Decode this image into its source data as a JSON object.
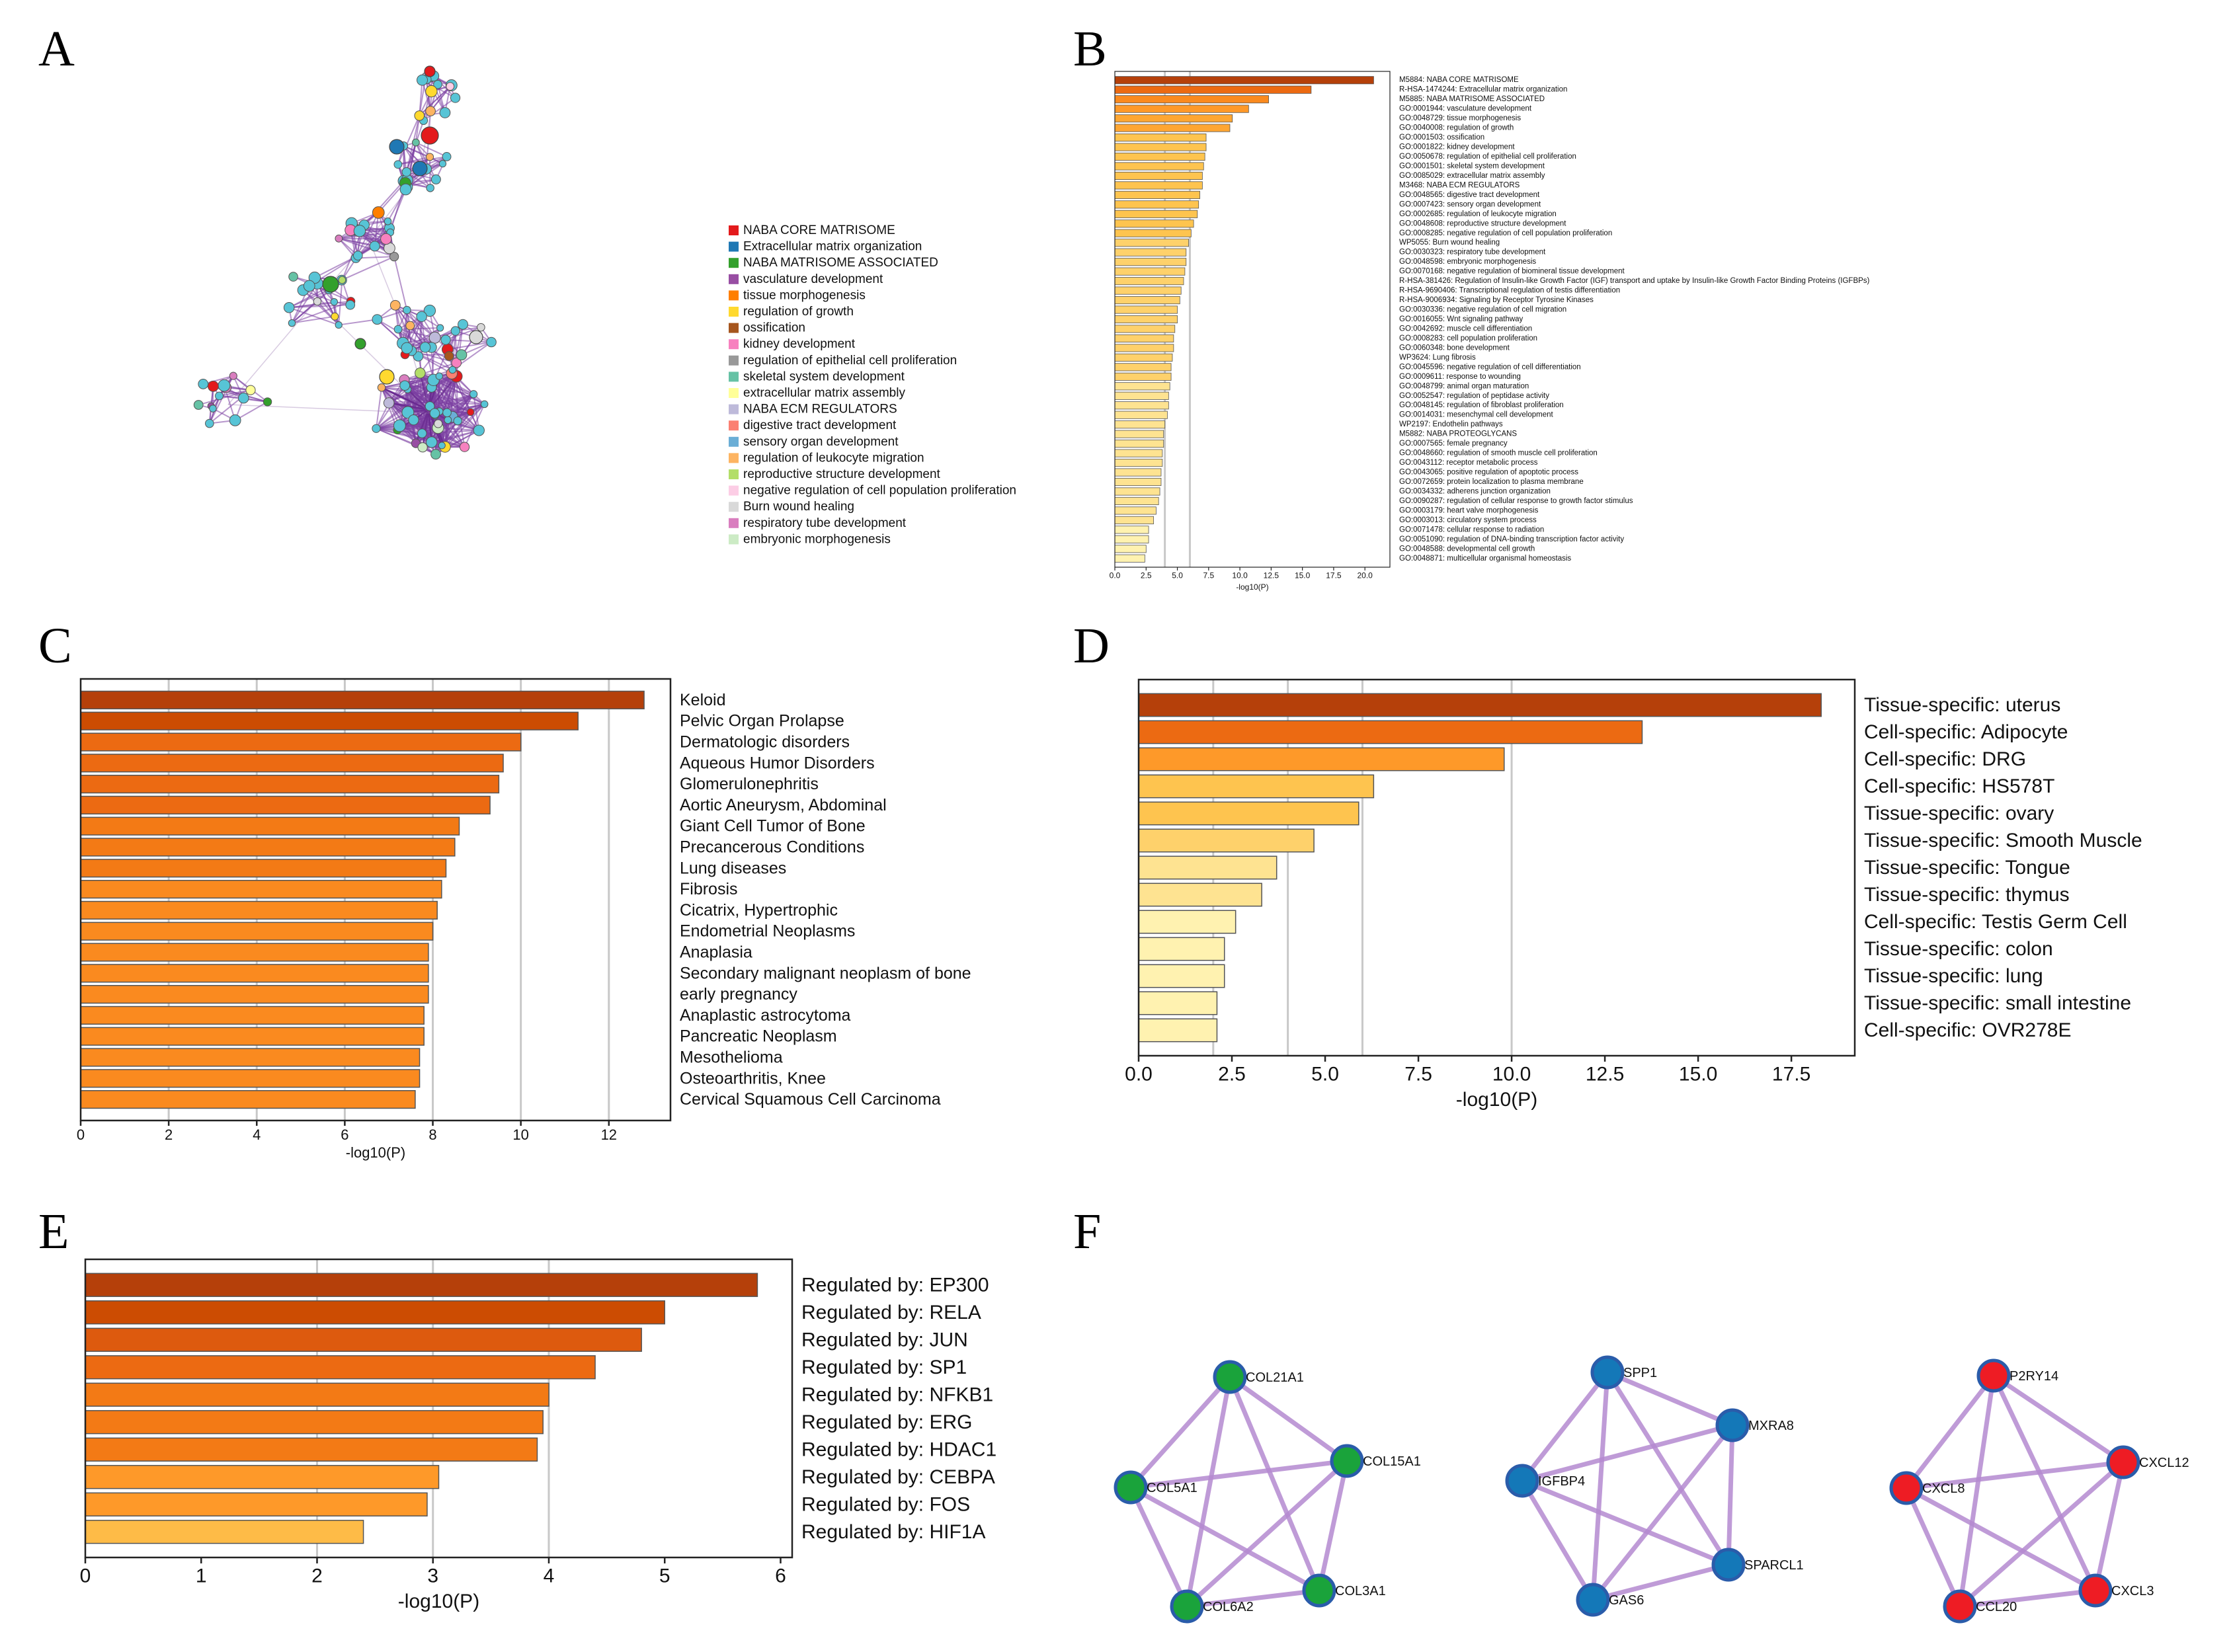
{
  "panel_labels": [
    "A",
    "B",
    "C",
    "D",
    "E",
    "F"
  ],
  "colors": {
    "grad": [
      "#ffffcc",
      "#fff2b0",
      "#fee391",
      "#fed16b",
      "#fec44f",
      "#febb47",
      "#fea632",
      "#fe9929",
      "#fa8a1f",
      "#f37a15",
      "#ec6a12",
      "#dd5a0e",
      "#cc4c02",
      "#b5400a"
    ],
    "edge": "#8e44ad",
    "node_green": "#1aa33b",
    "node_blue": "#1478b8",
    "node_red": "#ee1c24"
  },
  "chart_data": [
    {
      "panel": "A",
      "type": "network",
      "legend": [
        {
          "label": "NABA CORE MATRISOME",
          "color": "#e31a1c"
        },
        {
          "label": "Extracellular matrix organization",
          "color": "#1f78b4"
        },
        {
          "label": "NABA MATRISOME ASSOCIATED",
          "color": "#33a02c"
        },
        {
          "label": "vasculature development",
          "color": "#984ea3"
        },
        {
          "label": "tissue morphogenesis",
          "color": "#ff7f00"
        },
        {
          "label": "regulation of growth",
          "color": "#ffd92f"
        },
        {
          "label": "ossification",
          "color": "#a6561e"
        },
        {
          "label": "kidney development",
          "color": "#f781bf"
        },
        {
          "label": "regulation of epithelial cell proliferation",
          "color": "#999999"
        },
        {
          "label": "skeletal system development",
          "color": "#66c2a5"
        },
        {
          "label": "extracellular matrix assembly",
          "color": "#ffff99"
        },
        {
          "label": "NABA ECM REGULATORS",
          "color": "#bebada"
        },
        {
          "label": "digestive tract development",
          "color": "#fb8072"
        },
        {
          "label": "sensory organ development",
          "color": "#6baed6"
        },
        {
          "label": "regulation of leukocyte migration",
          "color": "#fdb462"
        },
        {
          "label": "reproductive structure development",
          "color": "#b3de69"
        },
        {
          "label": "negative regulation of cell population proliferation",
          "color": "#fccde5"
        },
        {
          "label": "Burn wound healing",
          "color": "#d9d9d9"
        },
        {
          "label": "respiratory tube development",
          "color": "#d97ebf"
        },
        {
          "label": "embryonic morphogenesis",
          "color": "#ccebc5"
        }
      ]
    },
    {
      "panel": "B",
      "type": "bar",
      "orientation": "horizontal",
      "xlabel": "-log10(P)",
      "xlim": [
        0,
        22
      ],
      "xticks": [
        0,
        2.5,
        5,
        7.5,
        10,
        12.5,
        15,
        17.5,
        20
      ],
      "xtick_labels": [
        "0.0",
        "2.5",
        "5.0",
        "7.5",
        "10.0",
        "12.5",
        "15.0",
        "17.5",
        "20.0"
      ],
      "grid": [
        4,
        6
      ],
      "categories": [
        "M5884: NABA CORE MATRISOME",
        "R-HSA-1474244: Extracellular matrix organization",
        "M5885: NABA MATRISOME ASSOCIATED",
        "GO:0001944: vasculature development",
        "GO:0048729: tissue morphogenesis",
        "GO:0040008: regulation of growth",
        "GO:0001503: ossification",
        "GO:0001822: kidney development",
        "GO:0050678: regulation of epithelial cell proliferation",
        "GO:0001501: skeletal system development",
        "GO:0085029: extracellular matrix assembly",
        "M3468: NABA ECM REGULATORS",
        "GO:0048565: digestive tract development",
        "GO:0007423: sensory organ development",
        "GO:0002685: regulation of leukocyte migration",
        "GO:0048608: reproductive structure development",
        "GO:0008285: negative regulation of cell population proliferation",
        "WP5055: Burn wound healing",
        "GO:0030323: respiratory tube development",
        "GO:0048598: embryonic morphogenesis",
        "GO:0070168: negative regulation of biomineral tissue development",
        "R-HSA-381426: Regulation of Insulin-like Growth Factor (IGF) transport and uptake by Insulin-like Growth Factor Binding Proteins (IGFBPs)",
        "R-HSA-9690406: Transcriptional regulation of testis differentiation",
        "R-HSA-9006934: Signaling by Receptor Tyrosine Kinases",
        "GO:0030336: negative regulation of cell migration",
        "GO:0016055: Wnt signaling pathway",
        "GO:0042692: muscle cell differentiation",
        "GO:0008283: cell population proliferation",
        "GO:0060348: bone development",
        "WP3624: Lung fibrosis",
        "GO:0045596: negative regulation of cell differentiation",
        "GO:0009611: response to wounding",
        "GO:0048799: animal organ maturation",
        "GO:0052547: regulation of peptidase activity",
        "GO:0048145: regulation of fibroblast proliferation",
        "GO:0014031: mesenchymal cell development",
        "WP2197: Endothelin pathways",
        "M5882: NABA PROTEOGLYCANS",
        "GO:0007565: female pregnancy",
        "GO:0048660: regulation of smooth muscle cell proliferation",
        "GO:0043112: receptor metabolic process",
        "GO:0043065: positive regulation of apoptotic process",
        "GO:0072659: protein localization to plasma membrane",
        "GO:0034332: adherens junction organization",
        "GO:0090287: regulation of cellular response to growth factor stimulus",
        "GO:0003179: heart valve morphogenesis",
        "GO:0003013: circulatory system process",
        "GO:0071478: cellular response to radiation",
        "GO:0051090: regulation of DNA-binding transcription factor activity",
        "GO:0048588: developmental cell growth",
        "GO:0048871: multicellular organismal homeostasis"
      ],
      "values": [
        20.7,
        15.7,
        12.3,
        10.7,
        9.4,
        9.2,
        7.3,
        7.3,
        7.2,
        7.1,
        7.0,
        7.0,
        6.8,
        6.7,
        6.6,
        6.3,
        6.1,
        5.9,
        5.7,
        5.7,
        5.6,
        5.5,
        5.3,
        5.2,
        5.0,
        5.0,
        4.8,
        4.7,
        4.7,
        4.6,
        4.5,
        4.5,
        4.4,
        4.3,
        4.3,
        4.2,
        4.0,
        3.9,
        3.9,
        3.8,
        3.8,
        3.7,
        3.7,
        3.6,
        3.5,
        3.3,
        3.1,
        2.7,
        2.7,
        2.5,
        2.4
      ]
    },
    {
      "panel": "C",
      "type": "bar",
      "orientation": "horizontal",
      "xlabel": "-log10(P)",
      "xlim": [
        0,
        13.4
      ],
      "xticks": [
        0,
        2,
        4,
        6,
        8,
        10,
        12
      ],
      "xtick_labels": [
        "0",
        "2",
        "4",
        "6",
        "8",
        "10",
        "12"
      ],
      "grid": [
        2,
        4,
        6,
        8,
        10,
        12
      ],
      "categories": [
        "Keloid",
        "Pelvic Organ Prolapse",
        "Dermatologic disorders",
        "Aqueous Humor Disorders",
        "Glomerulonephritis",
        "Aortic Aneurysm, Abdominal",
        "Giant Cell Tumor of Bone",
        "Precancerous Conditions",
        "Lung diseases",
        "Fibrosis",
        "Cicatrix, Hypertrophic",
        "Endometrial Neoplasms",
        "Anaplasia",
        "Secondary malignant neoplasm of bone",
        "early pregnancy",
        "Anaplastic astrocytoma",
        "Pancreatic Neoplasm",
        "Mesothelioma",
        "Osteoarthritis, Knee",
        "Cervical Squamous Cell Carcinoma"
      ],
      "values": [
        12.8,
        11.3,
        10.0,
        9.6,
        9.5,
        9.3,
        8.6,
        8.5,
        8.3,
        8.2,
        8.1,
        8.0,
        7.9,
        7.9,
        7.9,
        7.8,
        7.8,
        7.7,
        7.7,
        7.6
      ]
    },
    {
      "panel": "D",
      "type": "bar",
      "orientation": "horizontal",
      "xlabel": "-log10(P)",
      "xlim": [
        0,
        19.2
      ],
      "xticks": [
        0,
        2.5,
        5,
        7.5,
        10,
        12.5,
        15,
        17.5
      ],
      "xtick_labels": [
        "0.0",
        "2.5",
        "5.0",
        "7.5",
        "10.0",
        "12.5",
        "15.0",
        "17.5"
      ],
      "grid": [
        2,
        4,
        6,
        10
      ],
      "categories": [
        "Tissue-specific: uterus",
        "Cell-specific: Adipocyte",
        "Cell-specific: DRG",
        "Cell-specific: HS578T",
        "Tissue-specific: ovary",
        "Tissue-specific: Smooth Muscle",
        "Tissue-specific: Tongue",
        "Tissue-specific: thymus",
        "Cell-specific: Testis Germ Cell",
        "Tissue-specific: colon",
        "Tissue-specific: lung",
        "Tissue-specific: small intestine",
        "Cell-specific: OVR278E"
      ],
      "values": [
        18.3,
        13.5,
        9.8,
        6.3,
        5.9,
        4.7,
        3.7,
        3.3,
        2.6,
        2.3,
        2.3,
        2.1,
        2.1
      ]
    },
    {
      "panel": "E",
      "type": "bar",
      "orientation": "horizontal",
      "xlabel": "-log10(P)",
      "xlim": [
        0,
        6.1
      ],
      "xticks": [
        0,
        1,
        2,
        3,
        4,
        5,
        6
      ],
      "xtick_labels": [
        "0",
        "1",
        "2",
        "3",
        "4",
        "5",
        "6"
      ],
      "grid": [
        2,
        3,
        4
      ],
      "categories": [
        "Regulated by: EP300",
        "Regulated by: RELA",
        "Regulated by: JUN",
        "Regulated by: SP1",
        "Regulated by: NFKB1",
        "Regulated by: ERG",
        "Regulated by: HDAC1",
        "Regulated by: CEBPA",
        "Regulated by: FOS",
        "Regulated by: HIF1A"
      ],
      "values": [
        5.8,
        5.0,
        4.8,
        4.4,
        4.0,
        3.95,
        3.9,
        3.05,
        2.95,
        2.4
      ]
    },
    {
      "panel": "F",
      "type": "network",
      "clusters": [
        {
          "nodes": [
            "COL21A1",
            "COL15A1",
            "COL3A1",
            "COL6A2",
            "COL5A1"
          ],
          "color": "#1aa33b"
        },
        {
          "nodes": [
            "SPP1",
            "MXRA8",
            "SPARCL1",
            "GAS6",
            "IGFBP4"
          ],
          "color": "#1478b8"
        },
        {
          "nodes": [
            "P2RY14",
            "CXCL12",
            "CXCL3",
            "CCL20",
            "CXCL8"
          ],
          "color": "#ee1c24"
        }
      ]
    }
  ]
}
